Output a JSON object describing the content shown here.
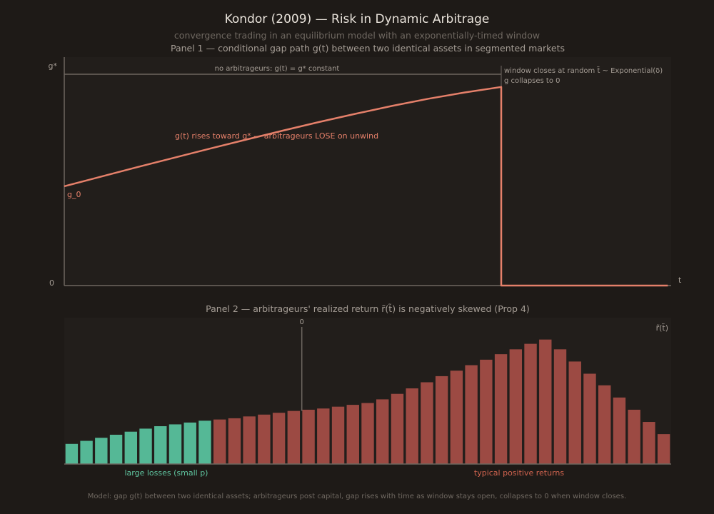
{
  "title": "Kondor (2009) — Risk in Dynamic Arbitrage",
  "subtitle": "convergence trading in an equilibrium model with an exponentially-timed window",
  "footer": "Model: gap g(t) between two identical assets; arbitrageurs post capital, gap rises with time as window stays open, collapses to 0 when window closes.",
  "colors": {
    "background": "#1e1a17",
    "panel_bg": "#221e1b",
    "axis": "#6e6760",
    "text_main": "#e8e2da",
    "text_dim": "#6f6861",
    "text_mid": "#a59d95",
    "gap_line": "#e5806a",
    "loss_bar": "#55b896",
    "gain_bar": "#9c4a43",
    "loss_label": "#5fc49f",
    "gain_label": "#d2644f"
  },
  "chart_data": [
    {
      "type": "line",
      "title": "Panel 1 — conditional gap path g(t) between two identical assets in segmented markets",
      "xlabel": "t",
      "ylabel": "",
      "ytick_labels": [
        "0",
        "g*"
      ],
      "xlim": [
        0,
        1
      ],
      "ylim": [
        0,
        1
      ],
      "g_star": 1,
      "g0": 0.47,
      "window_close_t": 0.72,
      "series": [
        {
          "x": [
            0,
            0.06,
            0.12,
            0.18,
            0.24,
            0.3,
            0.36,
            0.42,
            0.48,
            0.54,
            0.6,
            0.66,
            0.72,
            0.72,
            0.9945
          ],
          "y": [
            0.47,
            0.515,
            0.56,
            0.604,
            0.648,
            0.691,
            0.733,
            0.774,
            0.813,
            0.85,
            0.884,
            0.914,
            0.94,
            0.0,
            0.0
          ]
        }
      ],
      "annotations": {
        "g0_label": "g_0",
        "no_arb_label": "no arbitrageurs: g(t) = g* constant",
        "window_close_line1": "window closes at random t̃ ~ Exponential(δ)",
        "window_close_line2": "g collapses to 0",
        "rise_label": "g(t) rises toward g* — arbitrageurs LOSE on unwind"
      }
    },
    {
      "type": "bar",
      "title": "Panel 2 — arbitrageurs' realized return r̃(t̃) is negatively skewed (Prop 4)",
      "xlabel": "r̃(t̃)",
      "zero_label": "0",
      "values": [
        0.165,
        0.19,
        0.215,
        0.24,
        0.265,
        0.29,
        0.31,
        0.325,
        0.34,
        0.355,
        0.365,
        0.375,
        0.39,
        0.405,
        0.42,
        0.435,
        0.445,
        0.455,
        0.47,
        0.485,
        0.5,
        0.53,
        0.575,
        0.62,
        0.67,
        0.72,
        0.765,
        0.81,
        0.855,
        0.9,
        0.94,
        0.985,
        1.02,
        0.94,
        0.84,
        0.74,
        0.645,
        0.545,
        0.445,
        0.345,
        0.245
      ],
      "loss_bar_count": 10,
      "zero_after_bar": 16,
      "ylim": [
        0,
        1.17
      ],
      "loss_label": "large losses (small p)",
      "gain_label": "typical positive returns"
    }
  ]
}
